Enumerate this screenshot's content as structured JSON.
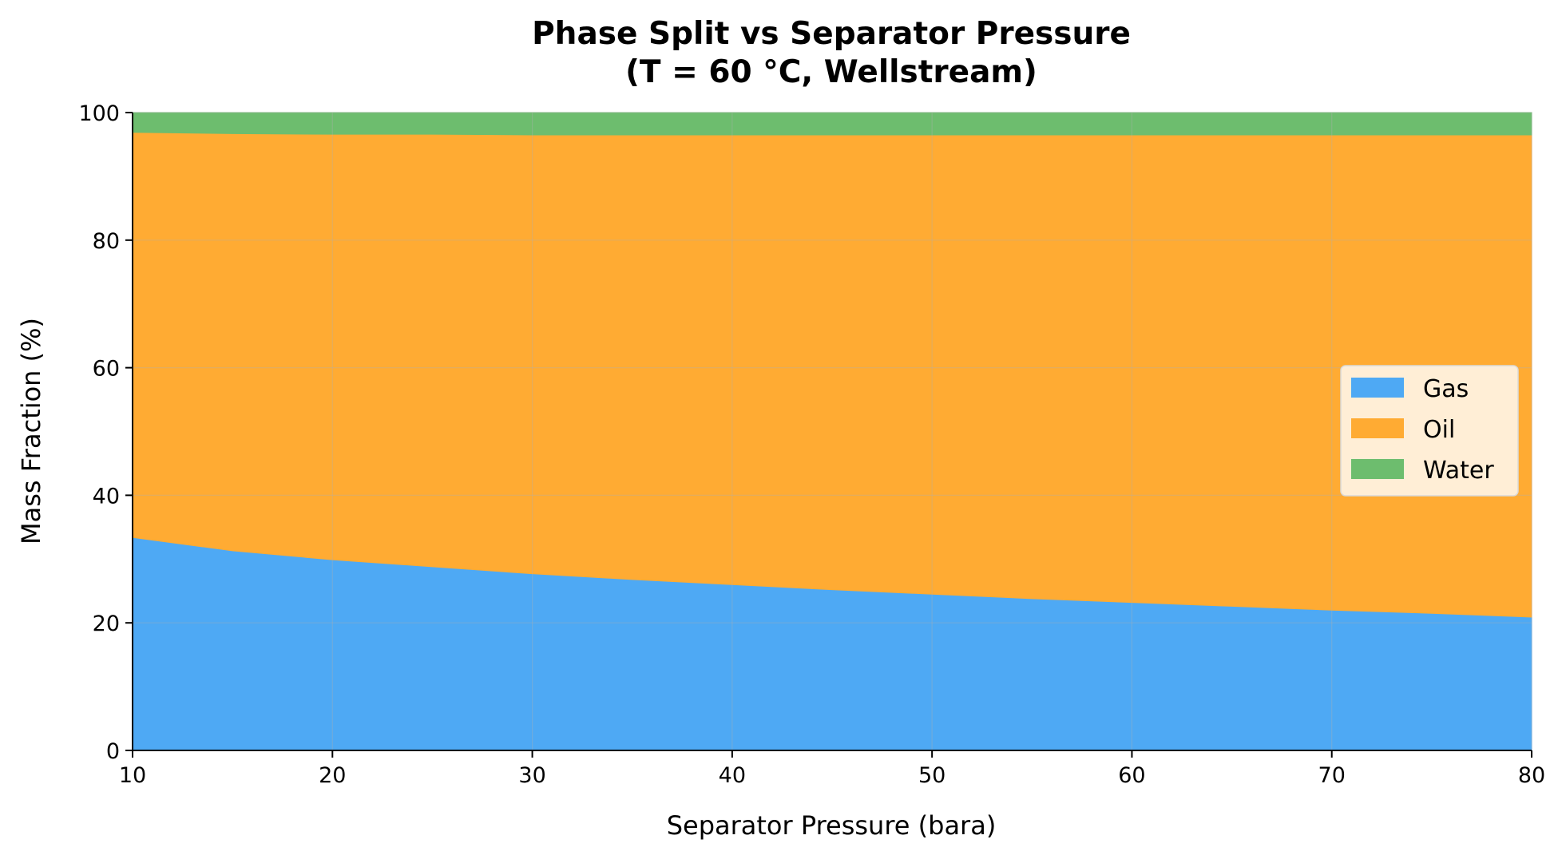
{
  "chart_data": {
    "type": "area",
    "stacked": true,
    "title": "Phase Split vs Separator Pressure",
    "subtitle": "(T = 60 °C, Wellstream)",
    "xlabel": "Separator Pressure (bara)",
    "ylabel": "Mass Fraction (%)",
    "xlim": [
      10,
      80
    ],
    "ylim": [
      0,
      100
    ],
    "xticks": [
      10,
      20,
      30,
      40,
      50,
      60,
      70,
      80
    ],
    "yticks": [
      0,
      20,
      40,
      60,
      80,
      100
    ],
    "grid": true,
    "legend_position": "center-right",
    "x": [
      10,
      15,
      20,
      25,
      30,
      35,
      40,
      45,
      50,
      55,
      60,
      65,
      70,
      75,
      80
    ],
    "series": [
      {
        "name": "Gas",
        "color": "#4EA9F4",
        "values": [
          33.4,
          31.3,
          29.9,
          28.8,
          27.7,
          26.8,
          26.0,
          25.2,
          24.5,
          23.8,
          23.2,
          22.6,
          22.0,
          21.5,
          20.9
        ]
      },
      {
        "name": "Oil",
        "color": "#FFAB33",
        "values": [
          63.5,
          65.4,
          66.7,
          67.8,
          68.8,
          69.7,
          70.5,
          71.3,
          72.0,
          72.7,
          73.3,
          73.9,
          74.5,
          75.0,
          75.6
        ]
      },
      {
        "name": "Water",
        "color": "#6DBD6E",
        "values": [
          3.1,
          3.3,
          3.4,
          3.4,
          3.5,
          3.5,
          3.5,
          3.5,
          3.5,
          3.5,
          3.5,
          3.5,
          3.5,
          3.5,
          3.5
        ]
      }
    ]
  }
}
